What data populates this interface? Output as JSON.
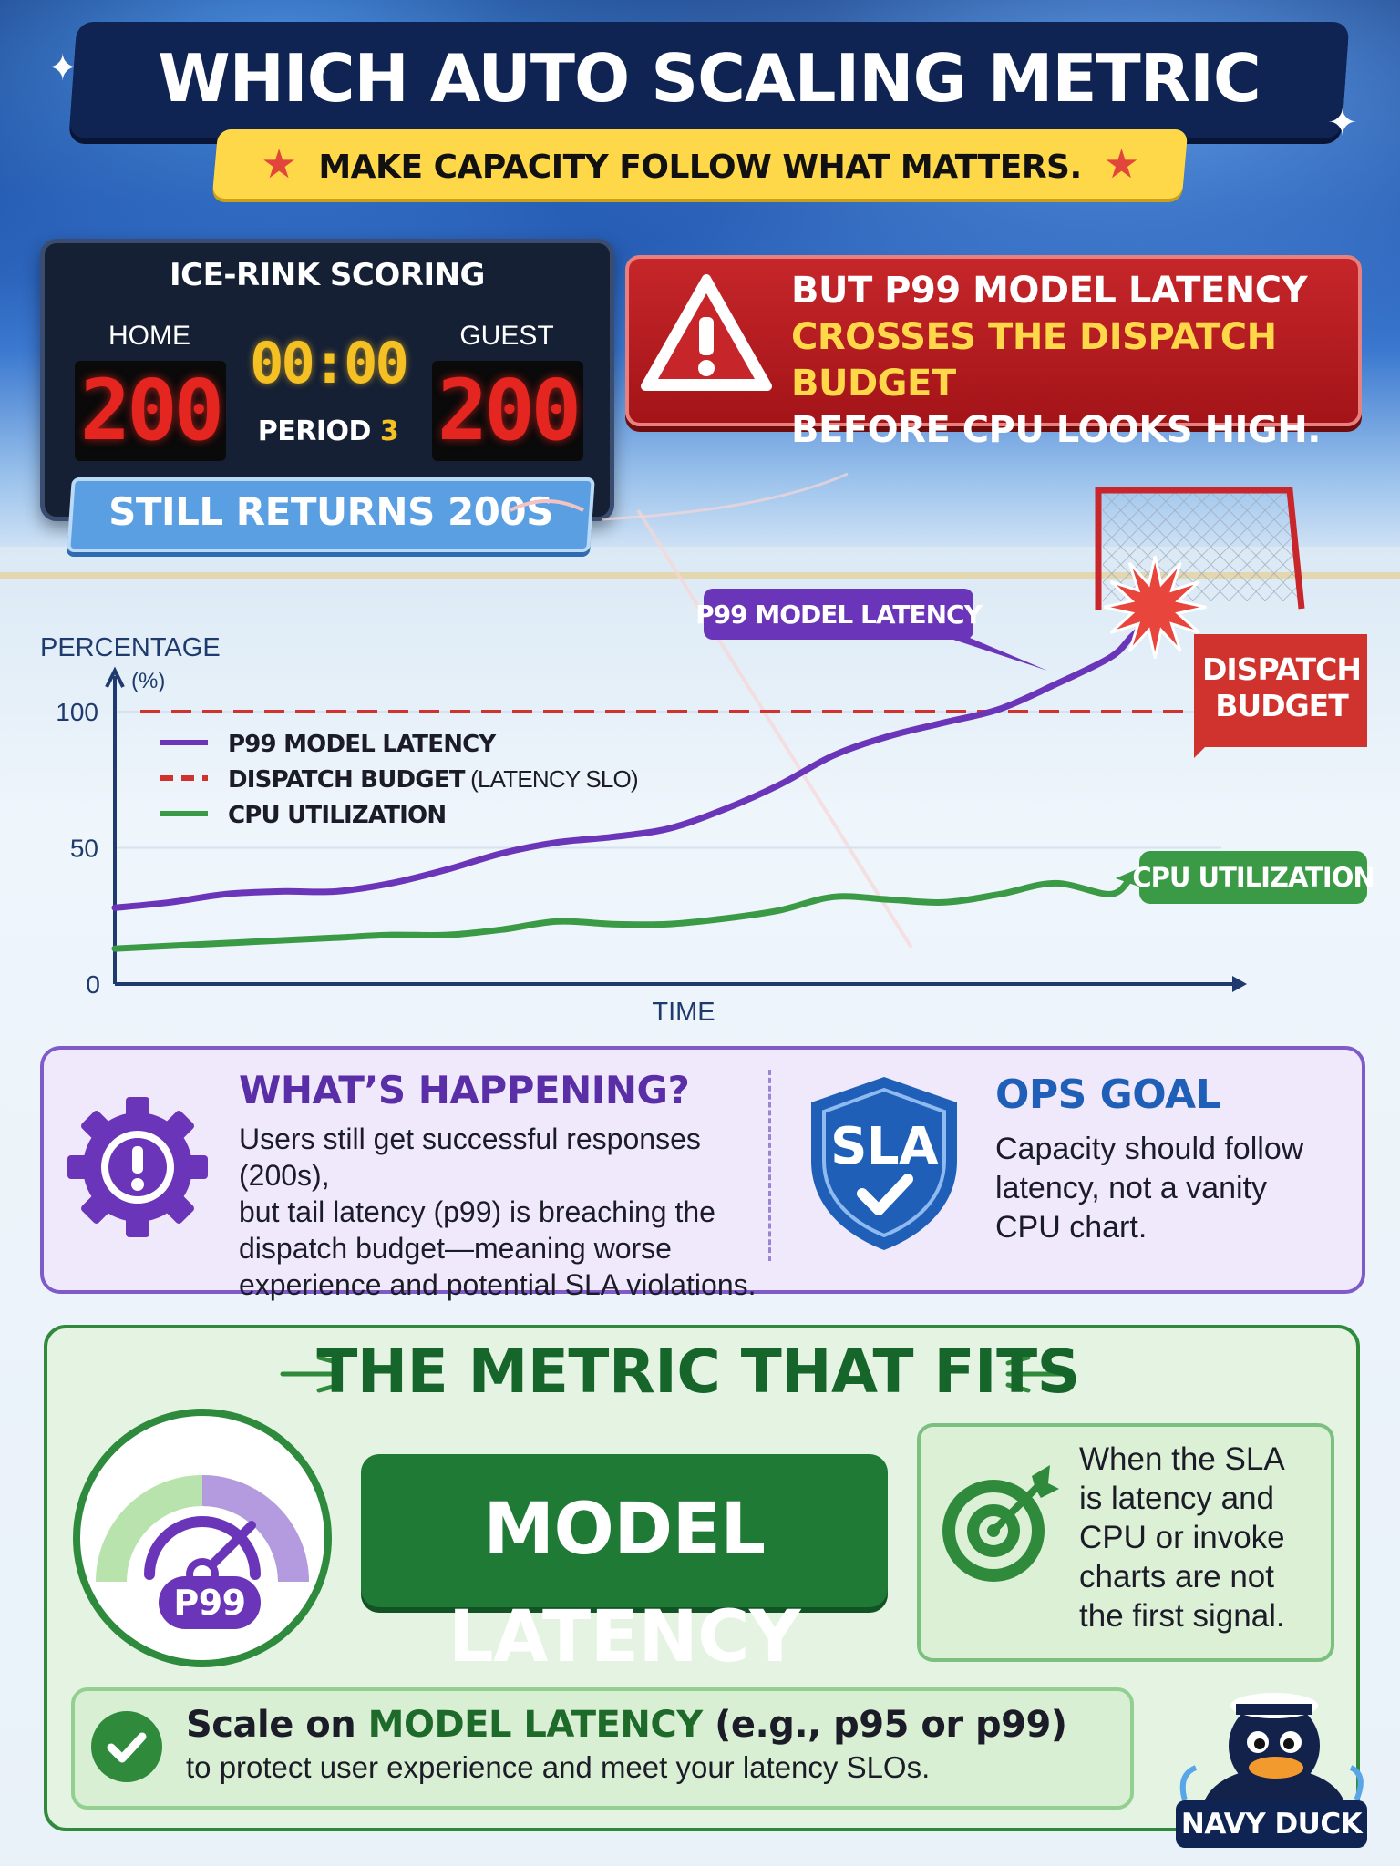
{
  "title": "WHICH AUTO SCALING METRIC FITS?",
  "subtitle": "MAKE CAPACITY FOLLOW WHAT MATTERS.",
  "scoreboard": {
    "title": "ICE-RINK SCORING",
    "home_label": "HOME",
    "guest_label": "GUEST",
    "home_score": "200",
    "guest_score": "200",
    "clock": "00:00",
    "period_label": "PERIOD",
    "period_value": "3",
    "banner": "STILL RETURNS 200S"
  },
  "alert": {
    "line1": "BUT P99 MODEL LATENCY",
    "line2": "CROSSES THE DISPATCH BUDGET",
    "line3": "BEFORE CPU LOOKS HIGH."
  },
  "chart_data": {
    "type": "line",
    "ylabel": "PERCENTAGE",
    "yunit": "(%)",
    "xlabel": "TIME",
    "ylim": [
      0,
      135
    ],
    "yticks": [
      0,
      50,
      100
    ],
    "grid": false,
    "legend_position": "top-left",
    "x": [
      0,
      5,
      10,
      15,
      20,
      25,
      30,
      35,
      40,
      45,
      50,
      55,
      60,
      65,
      70,
      75,
      80,
      85,
      90,
      92,
      94
    ],
    "series": [
      {
        "name": "P99 MODEL LATENCY",
        "color": "#6a35b8",
        "style": "solid",
        "values": [
          28,
          30,
          33,
          34,
          34,
          37,
          42,
          48,
          52,
          54,
          57,
          64,
          73,
          84,
          91,
          96,
          101,
          110,
          120,
          128,
          135
        ]
      },
      {
        "name": "DISPATCH BUDGET",
        "name_suffix": "(LATENCY SLO)",
        "color": "#d0322d",
        "style": "dashed",
        "values": [
          100,
          100,
          100,
          100,
          100,
          100,
          100,
          100,
          100,
          100,
          100,
          100,
          100,
          100,
          100,
          100,
          100,
          100,
          100,
          100,
          100
        ]
      },
      {
        "name": "CPU UTILIZATION",
        "color": "#3a9a45",
        "style": "solid",
        "values": [
          13,
          14,
          15,
          16,
          17,
          18,
          18,
          20,
          23,
          22,
          22,
          24,
          27,
          32,
          31,
          30,
          33,
          37,
          33,
          39,
          39
        ]
      }
    ],
    "annotations": {
      "latency_tag": "P99 MODEL LATENCY",
      "budget_flag": [
        "DISPATCH",
        "BUDGET"
      ],
      "cpu_tag": "CPU UTILIZATION"
    }
  },
  "whats_happening": {
    "heading": "WHAT’S HAPPENING?",
    "lines": [
      "Users still get successful responses (200s),",
      "but tail latency (p99) is breaching the",
      "dispatch budget—meaning worse",
      "experience and potential SLA violations."
    ]
  },
  "ops_goal": {
    "badge": "SLA",
    "heading": "OPS GOAL",
    "lines": [
      "Capacity should follow",
      "latency, not a vanity",
      "CPU chart."
    ]
  },
  "fits": {
    "heading": "THE METRIC THAT FITS",
    "gauge_label": "P99",
    "metric": "MODEL LATENCY",
    "when_lines": [
      "When the SLA",
      "is latency and",
      "CPU or invoke",
      "charts are not",
      "the first signal."
    ],
    "scale_prefix": "Scale on ",
    "scale_metric": "MODEL LATENCY",
    "scale_example": " (e.g., p95 or p99)",
    "scale_line2": "to protect user experience and meet your latency SLOs."
  },
  "mascot": {
    "name": "NAVY DUCK"
  },
  "colors": {
    "navy": "#0f2452",
    "purple": "#6a35b8",
    "red": "#c6262a",
    "green": "#2f8a3c",
    "yellow": "#ffd84a"
  }
}
